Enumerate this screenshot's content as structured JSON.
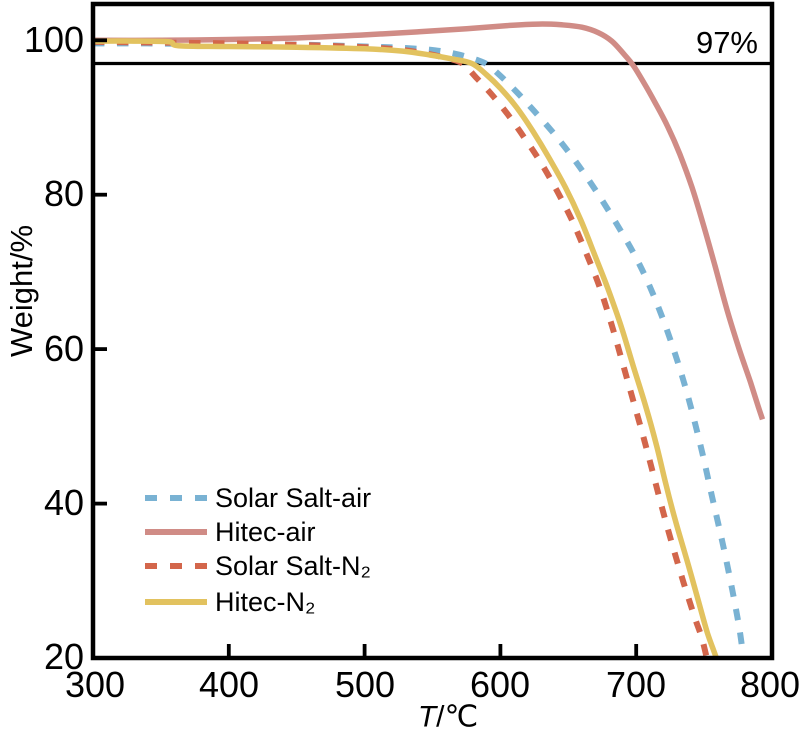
{
  "figure": {
    "annotation_97": "97%",
    "ylabel": "Weight/%",
    "xlabel_var": "T",
    "xlabel_unit": "/℃"
  },
  "chart_data": {
    "type": "line",
    "title": "",
    "xlabel": "T/℃",
    "ylabel": "Weight/%",
    "xlim": [
      300,
      800
    ],
    "ylim": [
      20,
      104.7
    ],
    "xticks": [
      300,
      400,
      500,
      600,
      700,
      800
    ],
    "yticks": [
      100,
      80,
      60,
      40,
      20
    ],
    "grid": false,
    "legend_position": "lower-left",
    "background": "#ffffff",
    "axis_color": "#000000",
    "reference_line": {
      "y": 97,
      "label": "97%",
      "color": "#000000"
    },
    "series": [
      {
        "name": "Solar Salt-air",
        "color": "#79B2D3",
        "style": "dashed",
        "points": [
          [
            300,
            99.6
          ],
          [
            340,
            99.6
          ],
          [
            380,
            99.5
          ],
          [
            420,
            99.5
          ],
          [
            460,
            99.4
          ],
          [
            500,
            99.2
          ],
          [
            530,
            99.0
          ],
          [
            552,
            98.7
          ],
          [
            568,
            98.2
          ],
          [
            582,
            97.5
          ],
          [
            590,
            96.9
          ],
          [
            600,
            95.4
          ],
          [
            612,
            93.3
          ],
          [
            625,
            90.8
          ],
          [
            640,
            87.8
          ],
          [
            655,
            84.4
          ],
          [
            670,
            80.6
          ],
          [
            685,
            76.4
          ],
          [
            700,
            71.8
          ],
          [
            712,
            67.3
          ],
          [
            724,
            61.8
          ],
          [
            736,
            55.2
          ],
          [
            747,
            47.8
          ],
          [
            756,
            40.8
          ],
          [
            764,
            34.6
          ],
          [
            771,
            28.6
          ],
          [
            776,
            23.8
          ],
          [
            779,
            20
          ]
        ]
      },
      {
        "name": "Hitec-air",
        "color": "#D08C86",
        "style": "solid",
        "points": [
          [
            300,
            100.0
          ],
          [
            350,
            100.0
          ],
          [
            400,
            100.1
          ],
          [
            450,
            100.3
          ],
          [
            500,
            100.7
          ],
          [
            540,
            101.1
          ],
          [
            575,
            101.5
          ],
          [
            605,
            101.9
          ],
          [
            628,
            102.1
          ],
          [
            645,
            102.0
          ],
          [
            660,
            101.7
          ],
          [
            672,
            101.0
          ],
          [
            682,
            99.9
          ],
          [
            691,
            98.2
          ],
          [
            698,
            96.7
          ],
          [
            706,
            94.4
          ],
          [
            714,
            91.9
          ],
          [
            723,
            88.9
          ],
          [
            732,
            85.3
          ],
          [
            741,
            81.0
          ],
          [
            749,
            76.4
          ],
          [
            758,
            70.8
          ],
          [
            767,
            65.0
          ],
          [
            776,
            59.9
          ],
          [
            784,
            55.8
          ],
          [
            790,
            52.5
          ],
          [
            793,
            50.9
          ]
        ]
      },
      {
        "name": "Solar Salt-N₂",
        "color": "#D3664B",
        "style": "dashed",
        "points": [
          [
            300,
            99.8
          ],
          [
            350,
            99.7
          ],
          [
            400,
            99.6
          ],
          [
            450,
            99.4
          ],
          [
            500,
            99.1
          ],
          [
            525,
            98.8
          ],
          [
            545,
            98.3
          ],
          [
            560,
            97.7
          ],
          [
            572,
            97.0
          ],
          [
            582,
            95.2
          ],
          [
            593,
            93.1
          ],
          [
            605,
            90.5
          ],
          [
            618,
            87.3
          ],
          [
            630,
            84.1
          ],
          [
            642,
            80.4
          ],
          [
            653,
            76.6
          ],
          [
            663,
            72.5
          ],
          [
            673,
            68.1
          ],
          [
            682,
            63.1
          ],
          [
            690,
            58.2
          ],
          [
            698,
            53.2
          ],
          [
            706,
            48.2
          ],
          [
            713,
            43.5
          ],
          [
            720,
            38.8
          ],
          [
            727,
            34.4
          ],
          [
            735,
            29.7
          ],
          [
            743,
            25.3
          ],
          [
            748,
            22.8
          ],
          [
            752,
            20
          ]
        ]
      },
      {
        "name": "Hitec-N₂",
        "color": "#E2C25F",
        "style": "solid",
        "points": [
          [
            300,
            99.9
          ],
          [
            330,
            99.9
          ],
          [
            356,
            99.8
          ],
          [
            363,
            99.3
          ],
          [
            400,
            99.2
          ],
          [
            450,
            99.1
          ],
          [
            500,
            98.9
          ],
          [
            528,
            98.6
          ],
          [
            548,
            98.1
          ],
          [
            564,
            97.6
          ],
          [
            579,
            97.0
          ],
          [
            590,
            95.5
          ],
          [
            600,
            93.8
          ],
          [
            612,
            91.3
          ],
          [
            624,
            88.2
          ],
          [
            636,
            84.7
          ],
          [
            648,
            80.9
          ],
          [
            659,
            76.8
          ],
          [
            669,
            72.4
          ],
          [
            679,
            67.9
          ],
          [
            689,
            62.9
          ],
          [
            698,
            57.7
          ],
          [
            707,
            52.6
          ],
          [
            715,
            47.5
          ],
          [
            722,
            42.4
          ],
          [
            729,
            37.7
          ],
          [
            737,
            32.9
          ],
          [
            745,
            27.9
          ],
          [
            752,
            23.5
          ],
          [
            757,
            21.0
          ],
          [
            759,
            20
          ]
        ]
      }
    ]
  }
}
